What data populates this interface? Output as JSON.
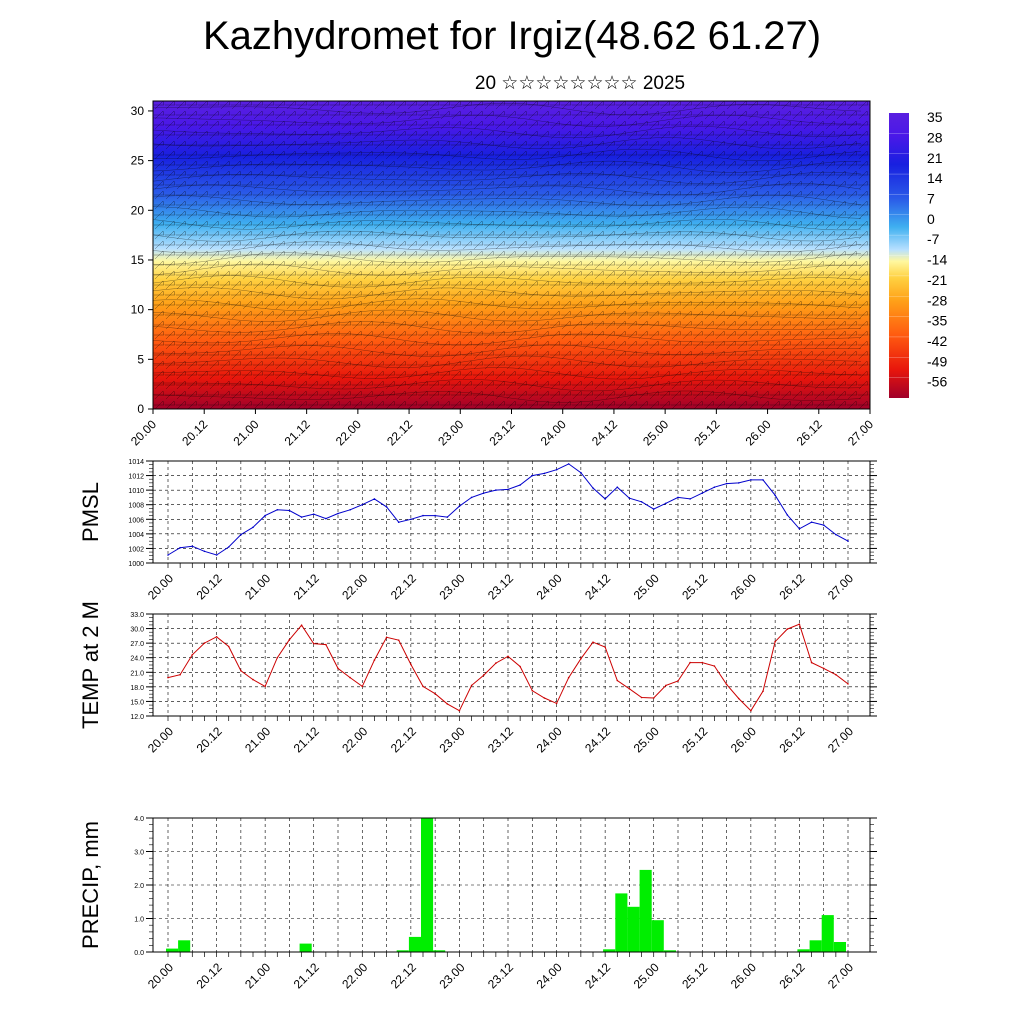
{
  "header": {
    "title": "Kazhydromet for Irgiz(48.62 61.27)",
    "subtitle": "20 ☆☆☆☆☆☆☆☆ 2025"
  },
  "chart_data": [
    {
      "type": "heatmap",
      "title": "",
      "xlabel": "",
      "ylabel": "",
      "x_ticks": [
        "20.00",
        "20.12",
        "21.00",
        "21.12",
        "22.00",
        "22.12",
        "23.00",
        "23.12",
        "24.00",
        "24.12",
        "25.00",
        "25.12",
        "26.00",
        "26.12",
        "27.00"
      ],
      "y_ticks": [
        "0",
        "5",
        "10",
        "15",
        "20",
        "25",
        "30"
      ],
      "ylim": [
        0,
        31
      ],
      "colorbar": {
        "labels": [
          "35",
          "28",
          "21",
          "14",
          "7",
          "0",
          "-7",
          "-14",
          "-21",
          "-28",
          "-35",
          "-42",
          "-49",
          "-56"
        ],
        "values": [
          35,
          28,
          21,
          14,
          7,
          0,
          -7,
          -14,
          -21,
          -28,
          -35,
          -42,
          -49,
          -56
        ]
      },
      "overlay": "wind barbs and isotherm contours"
    },
    {
      "type": "line",
      "ylabel": "PMSL",
      "ylim": [
        1000,
        1014
      ],
      "y_ticks": [
        "1000",
        "1002",
        "1004",
        "1006",
        "1008",
        "1010",
        "1012",
        "1014"
      ],
      "x_ticks": [
        "20.00",
        "20.12",
        "21.00",
        "21.12",
        "22.00",
        "22.12",
        "23.00",
        "23.12",
        "24.00",
        "24.12",
        "25.00",
        "25.12",
        "26.00",
        "26.12",
        "27.00"
      ],
      "color": "#0000cc",
      "x": [
        0,
        3,
        6,
        9,
        12,
        15,
        18,
        21,
        24,
        27,
        30,
        33,
        36,
        39,
        42,
        45,
        48,
        51,
        54,
        57,
        60,
        63,
        66,
        69,
        72,
        75,
        78,
        81,
        84,
        87,
        90,
        93,
        96,
        99,
        102,
        105,
        108,
        111,
        114,
        117,
        120,
        123,
        126,
        129,
        132,
        135,
        138,
        141,
        144,
        147,
        150,
        153,
        156,
        159,
        162,
        165,
        168
      ],
      "values": [
        1001.1,
        1002.1,
        1002.3,
        1001.6,
        1001.1,
        1002.2,
        1003.9,
        1004.9,
        1006.5,
        1007.3,
        1007.2,
        1006.3,
        1006.7,
        1006.1,
        1006.8,
        1007.3,
        1008.0,
        1008.8,
        1007.7,
        1005.6,
        1006.0,
        1006.5,
        1006.5,
        1006.3,
        1007.8,
        1009.0,
        1009.6,
        1010.0,
        1010.1,
        1010.7,
        1012.0,
        1012.3,
        1012.8,
        1013.6,
        1012.4,
        1010.3,
        1008.8,
        1010.4,
        1008.9,
        1008.4,
        1007.4,
        1008.2,
        1009.0,
        1008.8,
        1009.6,
        1010.4,
        1010.9,
        1011.0,
        1011.4,
        1011.4,
        1009.3,
        1006.6,
        1004.7,
        1005.6,
        1005.2,
        1003.9,
        1003.0
      ]
    },
    {
      "type": "line",
      "ylabel": "TEMP at 2 M",
      "ylim": [
        12,
        33
      ],
      "y_ticks": [
        "12.0",
        "15.0",
        "18.0",
        "21.0",
        "24.0",
        "27.0",
        "30.0",
        "33.0"
      ],
      "x_ticks": [
        "20.00",
        "20.12",
        "21.00",
        "21.12",
        "22.00",
        "22.12",
        "23.00",
        "23.12",
        "24.00",
        "24.12",
        "25.00",
        "25.12",
        "26.00",
        "26.12",
        "27.00"
      ],
      "color": "#cc0000",
      "x": [
        0,
        3,
        6,
        9,
        12,
        15,
        18,
        21,
        24,
        27,
        30,
        33,
        36,
        39,
        42,
        45,
        48,
        51,
        54,
        57,
        60,
        63,
        66,
        69,
        72,
        75,
        78,
        81,
        84,
        87,
        90,
        93,
        96,
        99,
        102,
        105,
        108,
        111,
        114,
        117,
        120,
        123,
        126,
        129,
        132,
        135,
        138,
        141,
        144,
        147,
        150,
        153,
        156,
        159,
        162,
        165,
        168
      ],
      "values": [
        19.9,
        20.5,
        24.6,
        27.0,
        28.3,
        26.3,
        21.3,
        19.5,
        18.1,
        24.0,
        27.7,
        30.7,
        26.9,
        26.7,
        21.8,
        19.9,
        18.1,
        23.5,
        28.2,
        27.6,
        22.6,
        18.1,
        16.6,
        14.5,
        13.1,
        18.3,
        20.4,
        22.9,
        24.3,
        22.2,
        17.2,
        15.7,
        14.6,
        19.9,
        23.8,
        27.2,
        26.2,
        19.3,
        17.6,
        15.8,
        15.7,
        18.3,
        19.2,
        23.0,
        23.0,
        22.3,
        18.5,
        15.6,
        13.1,
        17.1,
        27.3,
        29.9,
        30.9,
        23.0,
        21.8,
        20.5,
        18.6
      ]
    },
    {
      "type": "bar",
      "ylabel": "PRECIP, mm",
      "ylim": [
        0,
        4
      ],
      "y_ticks": [
        "0.0",
        "1.0",
        "2.0",
        "3.0",
        "4.0"
      ],
      "x_ticks": [
        "20.00",
        "20.12",
        "21.00",
        "21.12",
        "22.00",
        "22.12",
        "23.00",
        "23.12",
        "24.00",
        "24.12",
        "25.00",
        "25.12",
        "26.00",
        "26.12",
        "27.00"
      ],
      "color": "#00ee00",
      "bars": [
        {
          "x": 0,
          "value": 0.1
        },
        {
          "x": 3,
          "value": 0.35
        },
        {
          "x": 33,
          "value": 0.25
        },
        {
          "x": 57,
          "value": 0.05
        },
        {
          "x": 60,
          "value": 0.45
        },
        {
          "x": 63,
          "value": 4.0
        },
        {
          "x": 66,
          "value": 0.05
        },
        {
          "x": 108,
          "value": 0.08
        },
        {
          "x": 111,
          "value": 1.75
        },
        {
          "x": 114,
          "value": 1.35
        },
        {
          "x": 117,
          "value": 2.45
        },
        {
          "x": 120,
          "value": 0.95
        },
        {
          "x": 123,
          "value": 0.05
        },
        {
          "x": 156,
          "value": 0.08
        },
        {
          "x": 159,
          "value": 0.35
        },
        {
          "x": 162,
          "value": 1.1
        },
        {
          "x": 165,
          "value": 0.3
        }
      ]
    }
  ]
}
